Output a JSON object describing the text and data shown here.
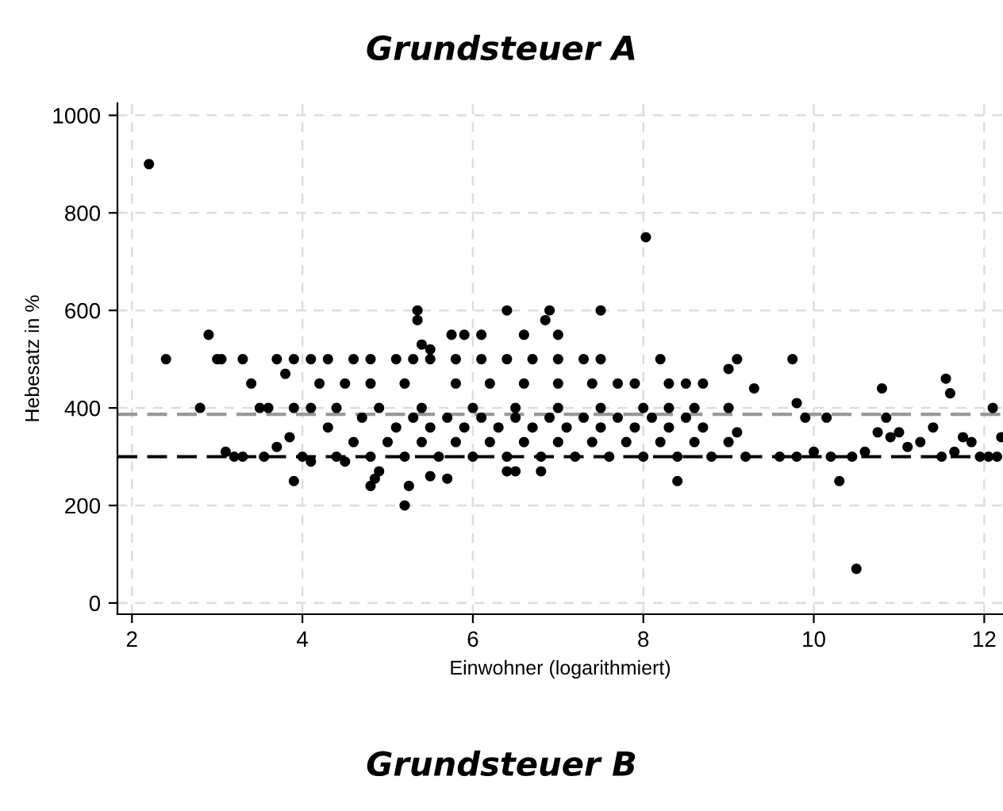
{
  "chart_data": {
    "type": "scatter",
    "title": "Grundsteuer A",
    "xlabel": "Einwohner (logarithmiert)",
    "ylabel": "Hebesatz in %",
    "xlim": [
      1.83,
      12.22
    ],
    "ylim": [
      -23,
      1025
    ],
    "xticks": [
      2,
      4,
      6,
      8,
      10,
      12
    ],
    "yticks": [
      0,
      200,
      400,
      600,
      800,
      1000
    ],
    "grid": true,
    "marker": "circle",
    "ref_lines": [
      {
        "axis": "y",
        "value": 387,
        "color": "#999999",
        "line_style": "dashed"
      },
      {
        "axis": "y",
        "value": 300,
        "color": "#000000",
        "line_style": "dashed"
      }
    ],
    "annotations": [
      "Grundsteuer B"
    ],
    "series": [
      {
        "color": "#000000",
        "x": [
          2.2,
          8.03,
          10.5,
          5.2,
          2.4,
          2.9,
          2.8,
          3.1,
          3.2,
          3.3,
          3.0,
          3.05,
          3.3,
          3.4,
          3.5,
          3.55,
          3.6,
          3.7,
          3.8,
          3.9,
          3.85,
          3.7,
          3.9,
          4.1,
          4.3,
          4.6,
          4.8,
          5.1,
          5.3,
          5.5,
          5.8,
          6.1,
          6.4,
          6.7,
          7.0,
          7.3,
          7.5,
          4.2,
          4.5,
          4.8,
          5.2,
          5.8,
          6.2,
          6.6,
          7.0,
          7.4,
          7.7,
          7.9,
          3.9,
          4.1,
          4.4,
          4.9,
          5.4,
          6.0,
          6.5,
          7.0,
          7.5,
          8.0,
          8.3,
          8.6,
          9.0,
          5.35,
          5.35,
          6.4,
          6.9,
          6.85,
          7.5,
          5.4,
          6.1,
          5.75,
          5.9,
          5.5,
          6.6,
          7.0,
          8.2,
          9.1,
          9.75,
          9.0,
          8.3,
          8.5,
          8.7,
          10.8,
          11.55,
          11.6,
          9.3,
          12.1,
          9.9,
          10.15,
          10.85,
          9.8,
          4.8,
          4.85,
          5.25,
          5.5,
          5.7,
          6.4,
          6.5,
          6.8,
          8.4,
          10.3,
          4.1,
          4.5,
          4.9,
          9.6,
          9.8,
          10.0,
          10.2,
          10.45,
          10.6,
          10.75,
          10.9,
          11.0,
          11.1,
          11.25,
          11.4,
          11.65,
          11.75,
          11.85,
          11.95,
          12.05,
          12.15,
          12.2,
          11.5,
          4.0,
          4.4,
          4.8,
          5.2,
          5.6,
          6.0,
          6.4,
          6.8,
          7.2,
          7.6,
          8.0,
          8.4,
          8.8,
          9.2,
          4.6,
          5.0,
          5.4,
          5.8,
          6.2,
          6.6,
          7.0,
          7.4,
          7.8,
          8.2,
          8.6,
          9.0,
          4.3,
          5.1,
          5.5,
          5.9,
          6.3,
          6.7,
          7.1,
          7.5,
          7.9,
          8.3,
          8.7,
          4.7,
          5.3,
          5.7,
          6.1,
          6.5,
          6.9,
          7.3,
          7.7,
          8.1,
          8.5,
          9.1
        ],
        "values": [
          900,
          750,
          70,
          200,
          500,
          550,
          400,
          310,
          300,
          300,
          500,
          500,
          500,
          450,
          400,
          300,
          400,
          320,
          470,
          250,
          340,
          500,
          500,
          500,
          500,
          500,
          500,
          500,
          500,
          500,
          500,
          500,
          500,
          500,
          500,
          500,
          500,
          450,
          450,
          450,
          450,
          450,
          450,
          450,
          450,
          450,
          450,
          450,
          400,
          400,
          400,
          400,
          400,
          400,
          400,
          400,
          400,
          400,
          400,
          400,
          400,
          600,
          580,
          600,
          600,
          580,
          600,
          530,
          550,
          550,
          550,
          520,
          550,
          550,
          500,
          500,
          500,
          480,
          450,
          450,
          450,
          440,
          460,
          430,
          440,
          400,
          380,
          380,
          380,
          410,
          240,
          255,
          240,
          260,
          255,
          270,
          270,
          270,
          250,
          250,
          290,
          290,
          270,
          300,
          300,
          310,
          300,
          300,
          310,
          350,
          340,
          350,
          320,
          330,
          360,
          310,
          340,
          330,
          300,
          300,
          300,
          340,
          300,
          300,
          300,
          300,
          300,
          300,
          300,
          300,
          300,
          300,
          300,
          300,
          300,
          300,
          300,
          330,
          330,
          330,
          330,
          330,
          330,
          330,
          330,
          330,
          330,
          330,
          330,
          360,
          360,
          360,
          360,
          360,
          360,
          360,
          360,
          360,
          360,
          360,
          380,
          380,
          380,
          380,
          380,
          380,
          380,
          380,
          380,
          380,
          350
        ]
      }
    ]
  }
}
